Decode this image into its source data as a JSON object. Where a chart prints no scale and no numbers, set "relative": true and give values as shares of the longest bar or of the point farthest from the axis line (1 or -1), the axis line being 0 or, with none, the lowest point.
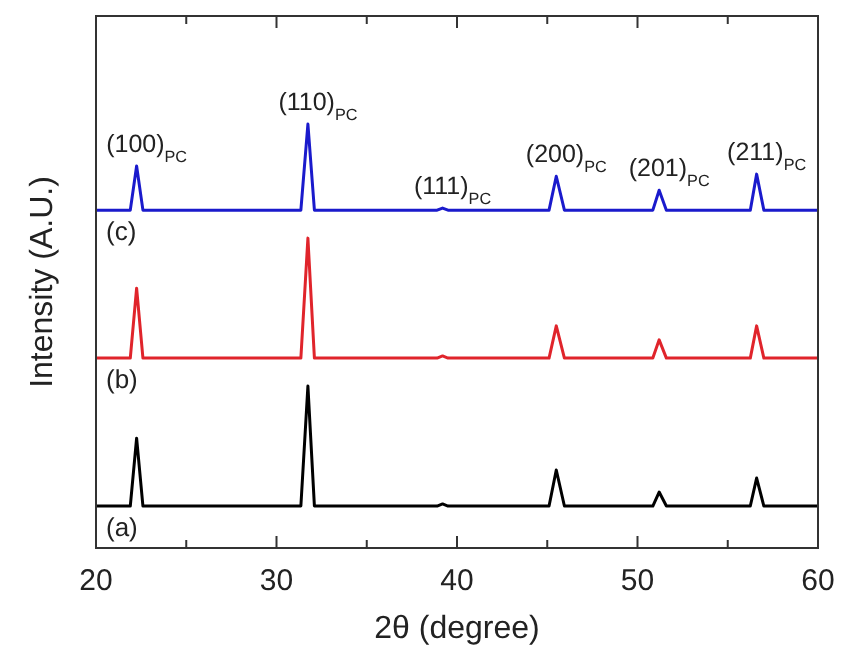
{
  "chart_data": {
    "type": "line",
    "relative": true,
    "xlabel": "2θ (degree)",
    "ylabel": "Intensity (A.U.)",
    "xlim": [
      20,
      60
    ],
    "xticks": [
      20,
      {
        "value": 25,
        "label": null
      },
      30,
      {
        "value": 35,
        "label": null
      },
      40,
      {
        "value": 45,
        "label": null
      },
      50,
      {
        "value": 55,
        "label": null
      },
      60
    ],
    "x": [
      20,
      21.9,
      22.25,
      22.6,
      31.35,
      31.74,
      32.1,
      38.9,
      39.2,
      39.5,
      45.1,
      45.5,
      45.95,
      50.85,
      51.2,
      51.6,
      56.25,
      56.6,
      57.0,
      60
    ],
    "series": [
      {
        "name": "(a)",
        "color": "#000000",
        "values": [
          0.099,
          0.099,
          0.259,
          0.099,
          0.099,
          0.382,
          0.099,
          0.099,
          0.104,
          0.099,
          0.099,
          0.184,
          0.099,
          0.099,
          0.132,
          0.099,
          0.099,
          0.165,
          0.099,
          0.099
        ]
      },
      {
        "name": "(b)",
        "color": "#e0242b",
        "values": [
          0.448,
          0.448,
          0.613,
          0.448,
          0.448,
          0.731,
          0.448,
          0.448,
          0.453,
          0.448,
          0.448,
          0.524,
          0.448,
          0.448,
          0.491,
          0.448,
          0.448,
          0.524,
          0.448,
          0.448
        ]
      },
      {
        "name": "(c)",
        "color": "#1a1acc",
        "values": [
          0.797,
          0.797,
          0.901,
          0.797,
          0.797,
          1.0,
          0.797,
          0.797,
          0.802,
          0.797,
          0.797,
          0.877,
          0.797,
          0.797,
          0.844,
          0.797,
          0.797,
          0.882,
          0.797,
          0.797
        ]
      }
    ],
    "annotations": [
      {
        "text": "(100)$_{PC}$",
        "x": 22.25,
        "y": 0.901
      },
      {
        "text": "(110)$_{PC}$",
        "x": 31.74,
        "y": 1.0
      },
      {
        "text": "(111)$_{PC}$",
        "x": 39.2,
        "y": 0.802
      },
      {
        "text": "(200)$_{PC}$",
        "x": 45.5,
        "y": 0.877
      },
      {
        "text": "(201)$_{PC}$",
        "x": 51.2,
        "y": 0.844
      },
      {
        "text": "(211)$_{PC}$",
        "x": 56.6,
        "y": 0.882
      }
    ],
    "grid": false,
    "marker": "none",
    "line_style": "solid"
  }
}
